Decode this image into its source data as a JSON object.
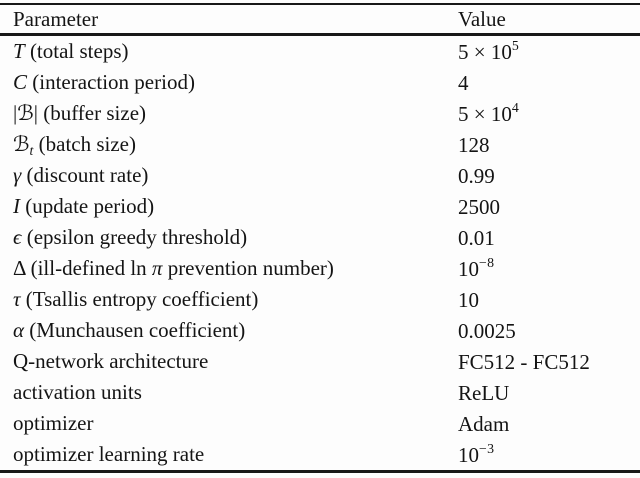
{
  "colors": {
    "background": "#fdfdfd",
    "text": "#141414",
    "rule": "#181818"
  },
  "table": {
    "header": {
      "param": "Parameter",
      "value": "Value"
    },
    "rows": [
      {
        "param": [
          {
            "t": "T",
            "s": "it"
          },
          {
            "t": " (total steps)",
            "s": "rm"
          }
        ],
        "value": {
          "base": "5 × 10",
          "sup": "5"
        }
      },
      {
        "param": [
          {
            "t": "C",
            "s": "it"
          },
          {
            "t": " (interaction period)",
            "s": "rm"
          }
        ],
        "value": {
          "base": "4",
          "sup": ""
        }
      },
      {
        "param": [
          {
            "t": "|",
            "s": "rm"
          },
          {
            "t": "ℬ",
            "s": "cal"
          },
          {
            "t": "|",
            "s": "rm"
          },
          {
            "t": " (buffer size)",
            "s": "rm"
          }
        ],
        "value": {
          "base": "5 × 10",
          "sup": "4"
        }
      },
      {
        "param": [
          {
            "t": "ℬ",
            "s": "cal"
          },
          {
            "t": "t",
            "s": "sub"
          },
          {
            "t": " (batch size)",
            "s": "rm"
          }
        ],
        "value": {
          "base": "128",
          "sup": ""
        }
      },
      {
        "param": [
          {
            "t": "γ",
            "s": "it"
          },
          {
            "t": " (discount rate)",
            "s": "rm"
          }
        ],
        "value": {
          "base": "0.99",
          "sup": ""
        }
      },
      {
        "param": [
          {
            "t": "I",
            "s": "it"
          },
          {
            "t": " (update period)",
            "s": "rm"
          }
        ],
        "value": {
          "base": "2500",
          "sup": ""
        }
      },
      {
        "param": [
          {
            "t": "ϵ",
            "s": "it"
          },
          {
            "t": " (epsilon greedy threshold)",
            "s": "rm"
          }
        ],
        "value": {
          "base": "0.01",
          "sup": ""
        }
      },
      {
        "param": [
          {
            "t": "Δ",
            "s": "rm"
          },
          {
            "t": " (ill-defined ln ",
            "s": "rm"
          },
          {
            "t": "π",
            "s": "it"
          },
          {
            "t": " prevention number)",
            "s": "rm"
          }
        ],
        "value": {
          "base": "10",
          "sup": "−8"
        }
      },
      {
        "param": [
          {
            "t": "τ",
            "s": "it"
          },
          {
            "t": " (Tsallis entropy coefficient)",
            "s": "rm"
          }
        ],
        "value": {
          "base": "10",
          "sup": ""
        }
      },
      {
        "param": [
          {
            "t": "α",
            "s": "it"
          },
          {
            "t": " (Munchausen coefficient)",
            "s": "rm"
          }
        ],
        "value": {
          "base": "0.0025",
          "sup": ""
        }
      },
      {
        "param": [
          {
            "t": "Q-network architecture",
            "s": "rm"
          }
        ],
        "value": {
          "base": "FC512 - FC512",
          "sup": ""
        }
      },
      {
        "param": [
          {
            "t": "activation units",
            "s": "rm"
          }
        ],
        "value": {
          "base": "ReLU",
          "sup": ""
        }
      },
      {
        "param": [
          {
            "t": "optimizer",
            "s": "rm"
          }
        ],
        "value": {
          "base": "Adam",
          "sup": ""
        }
      },
      {
        "param": [
          {
            "t": "optimizer learning rate",
            "s": "rm"
          }
        ],
        "value": {
          "base": "10",
          "sup": "−3"
        }
      }
    ]
  }
}
